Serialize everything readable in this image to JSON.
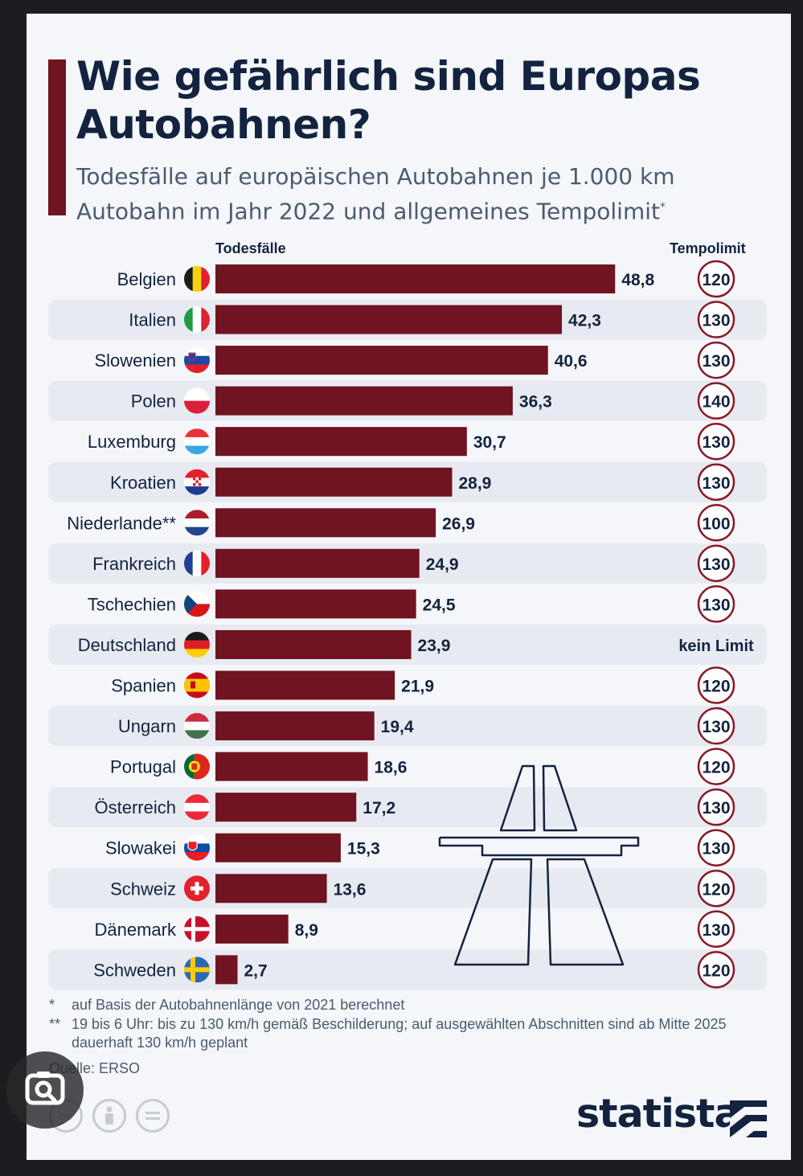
{
  "title": "Wie gefährlich sind Europas Autobahnen?",
  "subtitle_line1": "Todesfälle auf europäischen Autobahnen je 1.000 km",
  "subtitle_line2": "Autobahn im Jahr 2022 und allgemeines Tempolimit",
  "subtitle_mark": "*",
  "header_left": "Todesfälle",
  "header_right": "Tempolimit",
  "colors": {
    "bar": "#6f1420",
    "circle": "#8a1a2a",
    "text": "#13233f",
    "stripe": "#e7ebf1",
    "background": "#f4f6f9"
  },
  "chart_data": {
    "type": "bar",
    "orientation": "horizontal",
    "categories": [
      "Belgien",
      "Italien",
      "Slowenien",
      "Polen",
      "Luxemburg",
      "Kroatien",
      "Niederlande**",
      "Frankreich",
      "Tschechien",
      "Deutschland",
      "Spanien",
      "Ungarn",
      "Portugal",
      "Österreich",
      "Slowakei",
      "Schweiz",
      "Dänemark",
      "Schweden"
    ],
    "values": [
      48.8,
      42.3,
      40.6,
      36.3,
      30.7,
      28.9,
      26.9,
      24.9,
      24.5,
      23.9,
      21.9,
      19.4,
      18.6,
      17.2,
      15.3,
      13.6,
      8.9,
      2.7
    ],
    "value_labels": [
      "48,8",
      "42,3",
      "40,6",
      "36,3",
      "30,7",
      "28,9",
      "26,9",
      "24,9",
      "24,5",
      "23,9",
      "21,9",
      "19,4",
      "18,6",
      "17,2",
      "15,3",
      "13,6",
      "8,9",
      "2,7"
    ],
    "tempolimit": [
      "120",
      "130",
      "130",
      "140",
      "130",
      "130",
      "100",
      "130",
      "130",
      "kein Limit",
      "120",
      "130",
      "120",
      "130",
      "130",
      "120",
      "130",
      "120"
    ],
    "flags": [
      "flag-belgium",
      "flag-italy",
      "flag-slovenia",
      "flag-poland",
      "flag-luxembourg",
      "flag-croatia",
      "flag-netherlands",
      "flag-france",
      "flag-czechia",
      "flag-germany",
      "flag-spain",
      "flag-hungary",
      "flag-portugal",
      "flag-austria",
      "flag-slovakia",
      "flag-switzerland",
      "flag-denmark",
      "flag-sweden"
    ],
    "xlim": [
      0,
      50
    ]
  },
  "footnotes": [
    {
      "mark": "*",
      "text": "auf Basis der Autobahnenlänge von 2021 berechnet"
    },
    {
      "mark": "**",
      "text": "19 bis 6 Uhr: bis zu 130 km/h gemäß Beschilderung; auf ausgewählten Abschnitten sind ab Mitte 2025 dauerhaft 130 km/h geplant"
    }
  ],
  "source": "Quelle: ERSO",
  "brand": "statista",
  "license_icons": [
    "cc-icon",
    "by-icon",
    "nd-icon"
  ],
  "overlay_icon": "camera-search-icon"
}
